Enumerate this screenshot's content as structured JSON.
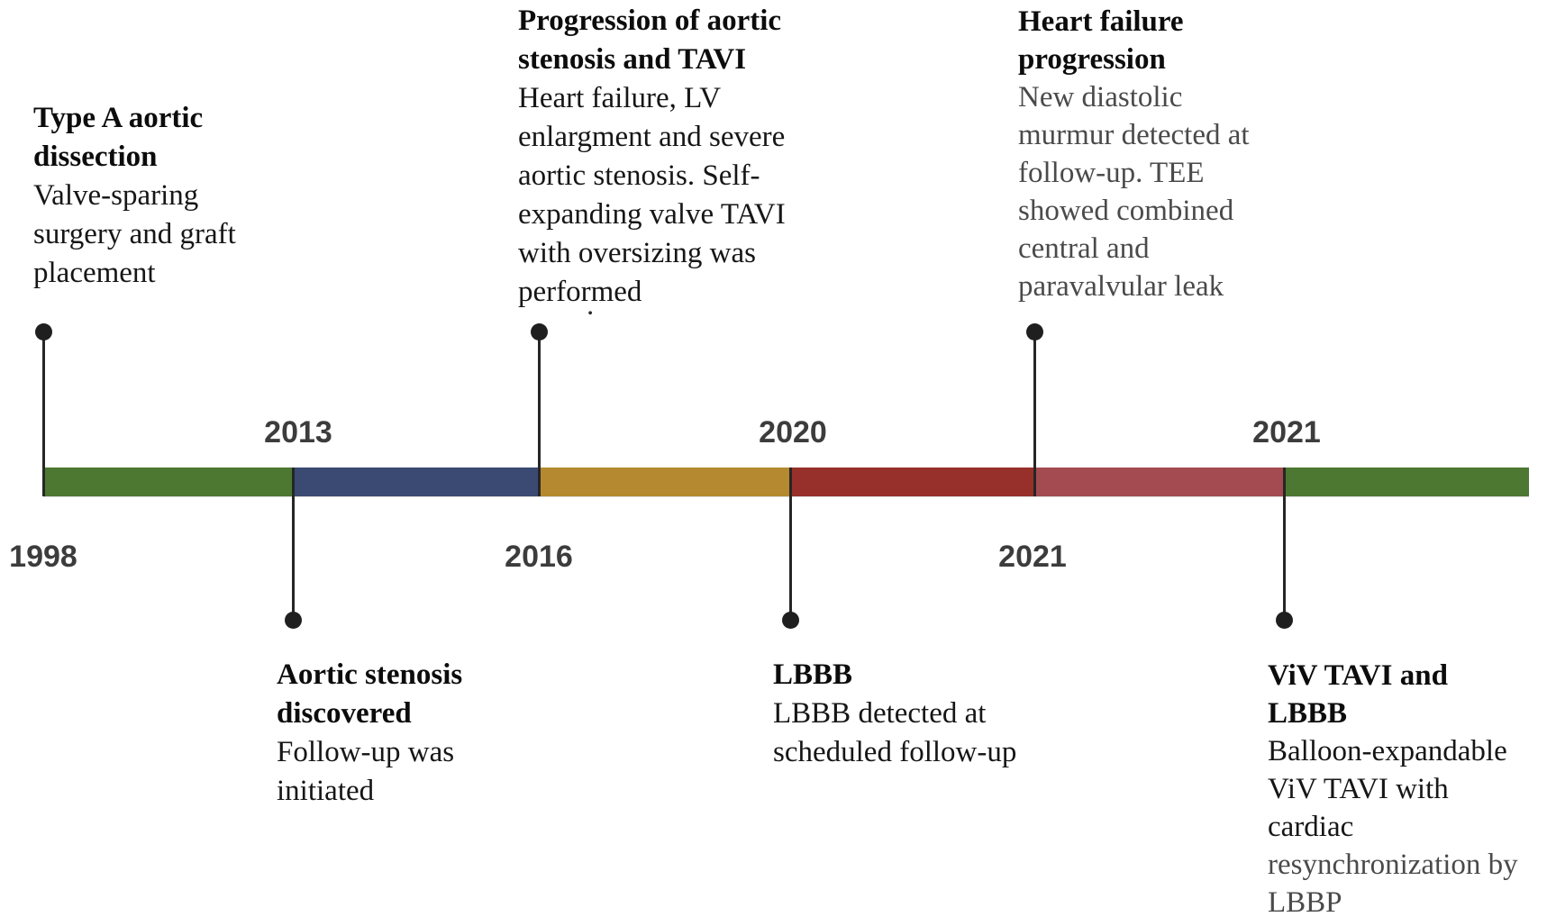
{
  "figure": {
    "description": "Patient history timeline 1998-2021",
    "background": "#ffffff"
  },
  "timeline": {
    "bar": {
      "segments": [
        {
          "name": "segment-1998-2013",
          "color": "#4c7831"
        },
        {
          "name": "segment-2013-2016",
          "color": "#3a4a72"
        },
        {
          "name": "segment-2016-2020",
          "color": "#b4892f"
        },
        {
          "name": "segment-2020-2021",
          "color": "#97302a"
        },
        {
          "name": "segment-2021-2021",
          "color": "#a34b50"
        },
        {
          "name": "segment-2021-end",
          "color": "#4c7831"
        }
      ]
    },
    "years_above": [
      {
        "label": "2013"
      },
      {
        "label": "2020"
      },
      {
        "label": "2021"
      }
    ],
    "years_below": [
      {
        "label": "1998"
      },
      {
        "label": "2016"
      },
      {
        "label": "2021"
      }
    ]
  },
  "events": [
    {
      "position": "above",
      "title_lines": [
        "Type A aortic",
        "dissection"
      ],
      "body_lines": [
        {
          "text": "Valve-sparing",
          "muted": false
        },
        {
          "text": "surgery and graft",
          "muted": false
        },
        {
          "text": "placement",
          "muted": false
        }
      ]
    },
    {
      "position": "above",
      "title_lines": [
        "Progression of aortic",
        "stenosis and TAVI"
      ],
      "body_lines": [
        {
          "text": "Heart failure, LV",
          "muted": false
        },
        {
          "text": "enlargment and severe",
          "muted": false
        },
        {
          "text": "aortic stenosis. Self-",
          "muted": false
        },
        {
          "text": "expanding valve TAVI",
          "muted": false
        },
        {
          "text": "with oversizing was",
          "muted": false
        },
        {
          "text": "performed",
          "muted": false
        }
      ]
    },
    {
      "position": "above",
      "title_lines": [
        "Heart failure",
        "progression"
      ],
      "body_lines": [
        {
          "text": "New diastolic",
          "muted": true
        },
        {
          "text": "murmur detected at",
          "muted": true
        },
        {
          "text": "follow-up. TEE",
          "muted": true
        },
        {
          "text": "showed combined",
          "muted": true
        },
        {
          "text": "central and",
          "muted": true
        },
        {
          "text": "paravalvular leak",
          "muted": true
        }
      ]
    },
    {
      "position": "below",
      "title_lines": [
        "Aortic stenosis",
        "discovered"
      ],
      "body_lines": [
        {
          "text": "Follow-up was",
          "muted": false
        },
        {
          "text": "initiated",
          "muted": false
        }
      ]
    },
    {
      "position": "below",
      "title_lines": [
        "LBBB"
      ],
      "body_lines": [
        {
          "text": "LBBB detected at",
          "muted": false
        },
        {
          "text": "scheduled follow-up",
          "muted": false
        }
      ]
    },
    {
      "position": "below",
      "title_lines": [
        "ViV TAVI and",
        "LBBB"
      ],
      "body_lines": [
        {
          "text": "Balloon-expandable",
          "muted": false
        },
        {
          "text": "ViV TAVI with",
          "muted": false
        },
        {
          "text": "cardiac",
          "muted": false
        },
        {
          "text": "resynchronization by",
          "muted": true
        },
        {
          "text": "LBBP",
          "muted": true
        }
      ]
    }
  ],
  "artifacts": {
    "stray_period": "."
  }
}
